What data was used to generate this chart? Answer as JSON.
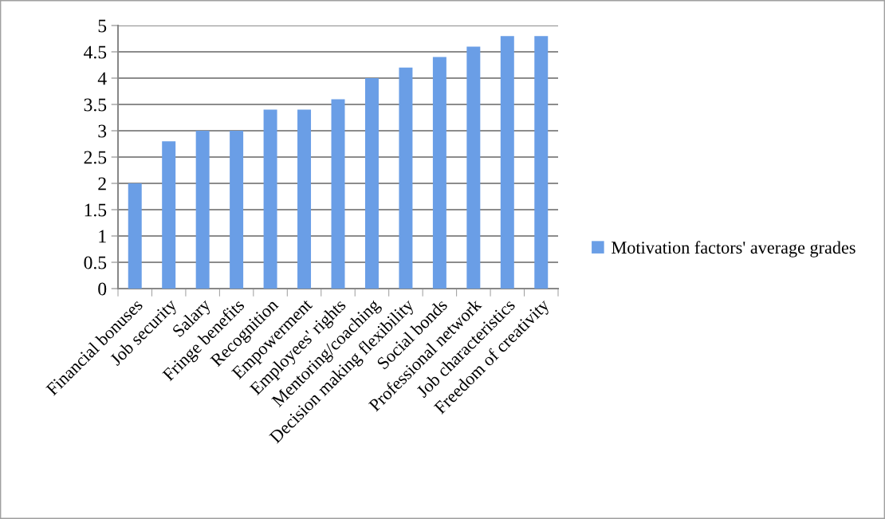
{
  "chart_data": {
    "type": "bar",
    "categories": [
      "Financial bonuses",
      "Job security",
      "Salary",
      "Fringe benefits",
      "Recognition",
      "Empowerment",
      "Employees' rights",
      "Mentoring/coaching",
      "Decision making flexibility",
      "Social bonds",
      "Professional network",
      "Job characteristics",
      "Freedom of creativity"
    ],
    "series": [
      {
        "name": "Motivation factors' average grades",
        "color": "#6a9ee6",
        "values": [
          2,
          2.8,
          3,
          3,
          3.4,
          3.4,
          3.6,
          4,
          4.2,
          4.4,
          4.6,
          4.8,
          4.8
        ]
      }
    ],
    "ylim": [
      0,
      5
    ],
    "yticks": [
      0,
      0.5,
      1,
      1.5,
      2,
      2.5,
      3,
      3.5,
      4,
      4.5,
      5
    ],
    "grid": "y",
    "legend": "right"
  }
}
